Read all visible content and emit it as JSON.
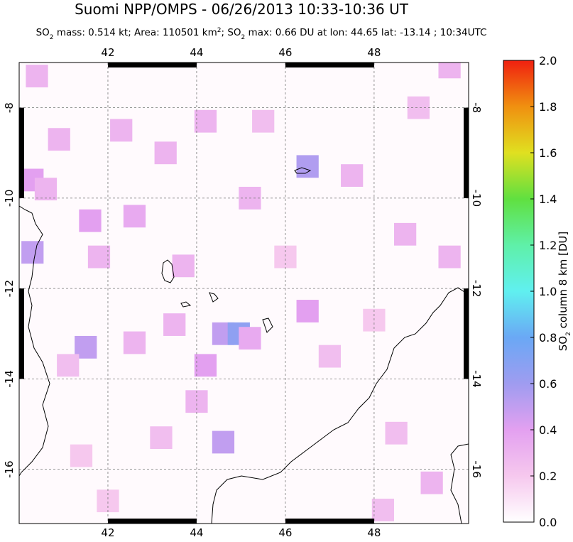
{
  "chart_data": {
    "type": "map",
    "title": "Suomi NPP/OMPS - 06/26/2013 10:33-10:36 UT",
    "subtitle": [
      {
        "text": "SO"
      },
      {
        "sub": "2"
      },
      {
        "text": " mass: 0.514 kt; Area: 110501 km"
      },
      {
        "sup": "2"
      },
      {
        "text": "; SO"
      },
      {
        "sub": "2"
      },
      {
        "text": " max: 0.66 DU at lon: 44.65 lat: -13.14 ; 10:34UTC"
      }
    ],
    "xlim": [
      40.0,
      50.13
    ],
    "ylim": [
      -17.2,
      -7.0
    ],
    "xticks": [
      42,
      44,
      46,
      48
    ],
    "yticks": [
      -8,
      -10,
      -12,
      -14,
      -16
    ],
    "grid": true,
    "colorbar": {
      "label": [
        {
          "text": "SO"
        },
        {
          "sub": "2"
        },
        {
          "text": " column 8 km [DU]"
        }
      ],
      "lim": [
        0,
        2
      ],
      "ticks": [
        {
          "value": 0,
          "label": "0.0"
        },
        {
          "value": 0.2,
          "label": "0.2"
        },
        {
          "value": 0.4,
          "label": "0.4"
        },
        {
          "value": 0.6,
          "label": "0.6"
        },
        {
          "value": 0.8,
          "label": "0.8"
        },
        {
          "value": 1,
          "label": "1.0"
        },
        {
          "value": 1.2,
          "label": "1.2"
        },
        {
          "value": 1.4,
          "label": "1.4"
        },
        {
          "value": 1.6,
          "label": "1.6"
        },
        {
          "value": 1.8,
          "label": "1.8"
        },
        {
          "value": 2,
          "label": "2.0"
        }
      ],
      "colors": [
        "#ffffff",
        "#f6c8ee",
        "#e3a0f0",
        "#9f9cf0",
        "#6aa8f5",
        "#60f0f0",
        "#5ff0a8",
        "#60e040",
        "#e0e020",
        "#f09010",
        "#f02010"
      ]
    },
    "x": [
      40.3,
      40.3,
      41.5,
      40.6,
      41.6,
      42.6,
      44.6,
      44.95,
      44.6,
      46.5,
      46.5,
      45.2,
      43.3,
      44.2,
      47.5,
      49.0,
      48.7,
      49.7,
      49.7,
      40.9,
      42.3,
      43.7,
      44.2,
      43.5,
      42.6,
      41.1,
      40.4,
      41.8,
      43.2,
      44.0,
      45.2,
      47.0,
      48.5,
      48.2,
      49.3,
      42.0,
      45.5,
      41.4,
      46.0,
      48.0
    ],
    "y": [
      -11.2,
      -9.6,
      -13.3,
      -9.8,
      -10.5,
      -10.4,
      -13.0,
      -13.0,
      -15.4,
      -9.3,
      -12.5,
      -13.1,
      -9.0,
      -8.3,
      -9.5,
      -8.0,
      -10.8,
      -11.3,
      -7.1,
      -8.7,
      -8.5,
      -11.5,
      -13.7,
      -12.8,
      -13.2,
      -13.7,
      -7.3,
      -11.3,
      -15.3,
      -14.5,
      -10.0,
      -13.5,
      -15.2,
      -16.9,
      -16.3,
      -16.7,
      -8.3,
      -15.7,
      -11.3,
      -12.7
    ],
    "values": [
      0.5,
      0.4,
      0.5,
      0.3,
      0.4,
      0.35,
      0.5,
      0.66,
      0.5,
      0.55,
      0.4,
      0.35,
      0.3,
      0.3,
      0.3,
      0.25,
      0.3,
      0.3,
      0.3,
      0.3,
      0.3,
      0.3,
      0.4,
      0.3,
      0.3,
      0.25,
      0.3,
      0.3,
      0.25,
      0.3,
      0.3,
      0.25,
      0.25,
      0.25,
      0.3,
      0.2,
      0.25,
      0.2,
      0.2,
      0.2
    ]
  }
}
